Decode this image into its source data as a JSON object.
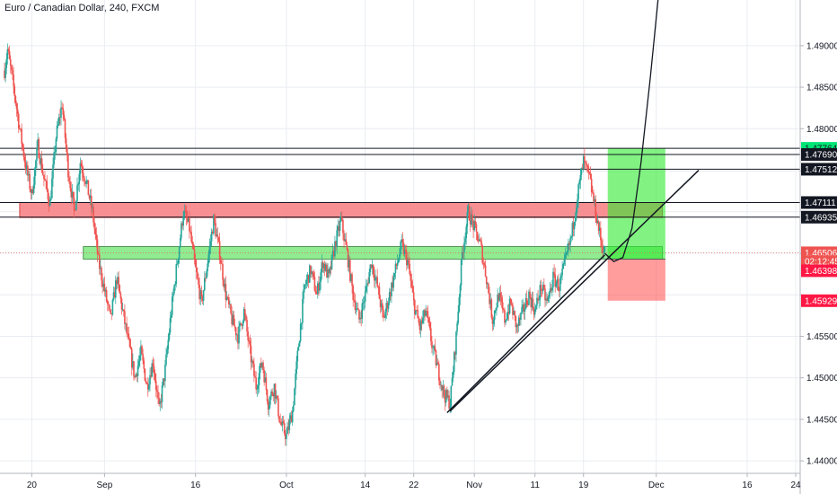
{
  "chart_data": {
    "type": "candlestick",
    "title": "Euro / Canadian Dollar, 240, FXCM",
    "ylim": [
      1.4385,
      1.4955
    ],
    "y_ticks": [
      1.49,
      1.485,
      1.48,
      1.4749,
      1.47,
      1.465,
      1.46,
      1.455,
      1.45,
      1.445,
      1.44
    ],
    "y_tick_labels": [
      "1.49000",
      "1.48500",
      "1.48000",
      "",
      "",
      "",
      "",
      "1.45500",
      "1.45000",
      "1.44500",
      "1.44000"
    ],
    "x_ticks": [
      {
        "label": "20",
        "t": 20
      },
      {
        "label": "Sep",
        "t": 32
      },
      {
        "label": "16",
        "t": 47
      },
      {
        "label": "Oct",
        "t": 62
      },
      {
        "label": "14",
        "t": 75
      },
      {
        "label": "22",
        "t": 83
      },
      {
        "label": "Nov",
        "t": 93
      },
      {
        "label": "11",
        "t": 103
      },
      {
        "label": "19",
        "t": 111
      },
      {
        "label": "Dec",
        "t": 123
      },
      {
        "label": "16",
        "t": 138
      },
      {
        "label": "24",
        "t": 146
      }
    ],
    "x_range": [
      15.5,
      146
    ],
    "price_path": [
      [
        15.5,
        1.487
      ],
      [
        16,
        1.4895
      ],
      [
        17,
        1.485
      ],
      [
        18,
        1.48
      ],
      [
        19,
        1.4755
      ],
      [
        20,
        1.472
      ],
      [
        21,
        1.478
      ],
      [
        22,
        1.474
      ],
      [
        23,
        1.471
      ],
      [
        24,
        1.479
      ],
      [
        25,
        1.483
      ],
      [
        26,
        1.475
      ],
      [
        27,
        1.47
      ],
      [
        28,
        1.476
      ],
      [
        29,
        1.4735
      ],
      [
        30,
        1.47
      ],
      [
        31,
        1.464
      ],
      [
        32,
        1.4605
      ],
      [
        33,
        1.457
      ],
      [
        34,
        1.462
      ],
      [
        35,
        1.458
      ],
      [
        36,
        1.454
      ],
      [
        37,
        1.45
      ],
      [
        38,
        1.453
      ],
      [
        39,
        1.449
      ],
      [
        40,
        1.452
      ],
      [
        41,
        1.446
      ],
      [
        42,
        1.451
      ],
      [
        43,
        1.458
      ],
      [
        44,
        1.464
      ],
      [
        45,
        1.47
      ],
      [
        46,
        1.468
      ],
      [
        47,
        1.463
      ],
      [
        48,
        1.459
      ],
      [
        49,
        1.464
      ],
      [
        50,
        1.469
      ],
      [
        51,
        1.465
      ],
      [
        52,
        1.46
      ],
      [
        53,
        1.457
      ],
      [
        54,
        1.455
      ],
      [
        55,
        1.458
      ],
      [
        56,
        1.453
      ],
      [
        57,
        1.449
      ],
      [
        58,
        1.452
      ],
      [
        59,
        1.447
      ],
      [
        60,
        1.449
      ],
      [
        61,
        1.4445
      ],
      [
        62,
        1.443
      ],
      [
        63,
        1.446
      ],
      [
        64,
        1.454
      ],
      [
        65,
        1.461
      ],
      [
        66,
        1.463
      ],
      [
        67,
        1.46
      ],
      [
        68,
        1.464
      ],
      [
        69,
        1.462
      ],
      [
        70,
        1.466
      ],
      [
        71,
        1.469
      ],
      [
        72,
        1.465
      ],
      [
        73,
        1.46
      ],
      [
        74,
        1.457
      ],
      [
        75,
        1.46
      ],
      [
        76,
        1.464
      ],
      [
        77,
        1.461
      ],
      [
        78,
        1.457
      ],
      [
        79,
        1.46
      ],
      [
        80,
        1.463
      ],
      [
        81,
        1.466
      ],
      [
        82,
        1.464
      ],
      [
        83,
        1.459
      ],
      [
        84,
        1.456
      ],
      [
        85,
        1.458
      ],
      [
        86,
        1.454
      ],
      [
        87,
        1.451
      ],
      [
        88,
        1.448
      ],
      [
        89,
        1.447
      ],
      [
        90,
        1.455
      ],
      [
        91,
        1.465
      ],
      [
        92,
        1.47
      ],
      [
        93,
        1.468
      ],
      [
        94,
        1.466
      ],
      [
        95,
        1.462
      ],
      [
        96,
        1.457
      ],
      [
        97,
        1.46
      ],
      [
        98,
        1.457
      ],
      [
        99,
        1.459
      ],
      [
        100,
        1.456
      ],
      [
        101,
        1.458
      ],
      [
        102,
        1.46
      ],
      [
        103,
        1.458
      ],
      [
        104,
        1.461
      ],
      [
        105,
        1.459
      ],
      [
        106,
        1.462
      ],
      [
        107,
        1.461
      ],
      [
        108,
        1.464
      ],
      [
        109,
        1.467
      ],
      [
        110,
        1.472
      ],
      [
        111,
        1.476
      ],
      [
        112,
        1.474
      ],
      [
        113,
        1.47
      ],
      [
        114,
        1.466
      ],
      [
        114.6,
        1.465
      ]
    ],
    "horizontal_lines": [
      1.47764,
      1.4769,
      1.47512,
      1.47111,
      1.46935
    ],
    "zones": [
      {
        "kind": "resistance",
        "t0": 18,
        "t1": 124,
        "y0": 1.4711,
        "y1": 1.4693
      },
      {
        "kind": "support",
        "t0": 28.5,
        "t1": 124,
        "y0": 1.4658,
        "y1": 1.4643
      }
    ],
    "position": {
      "t0": 115,
      "t1": 124.5,
      "entry": 1.4643,
      "target": 1.47764,
      "stop": 1.45929
    },
    "trendlines": [
      [
        [
          89,
          1.446
        ],
        [
          130,
          1.475
        ]
      ],
      [
        [
          88.5,
          1.4458
        ],
        [
          114.5,
          1.4648
        ]
      ]
    ],
    "projection_curve": [
      [
        114.5,
        1.465
      ],
      [
        116,
        1.464
      ],
      [
        117.5,
        1.4645
      ],
      [
        119,
        1.468
      ],
      [
        120.5,
        1.476
      ],
      [
        122,
        1.486
      ],
      [
        123.5,
        1.497
      ]
    ],
    "current_price": 1.46506,
    "labels": [
      {
        "text": "1.47764",
        "price": 1.47764,
        "bg": "#00e676",
        "fg": "#131722"
      },
      {
        "text": "1.47690",
        "price": 1.4769,
        "bg": "#131722",
        "fg": "#ffffff"
      },
      {
        "text": "1.47512",
        "price": 1.47512,
        "bg": "#131722",
        "fg": "#ffffff"
      },
      {
        "text": "1.47111",
        "price": 1.47111,
        "bg": "#131722",
        "fg": "#ffffff"
      },
      {
        "text": "1.46935",
        "price": 1.46935,
        "bg": "#131722",
        "fg": "#ffffff"
      },
      {
        "text": "1.46506",
        "price": 1.46506,
        "bg": "#ef5350",
        "fg": "#ffffff"
      },
      {
        "text": "02:12:45",
        "price": 1.464,
        "bg": "#ef5350",
        "fg": "#ffffff"
      },
      {
        "text": "1.46398",
        "price": 1.4629,
        "bg": "#ff1744",
        "fg": "#ffffff"
      },
      {
        "text": "1.45929",
        "price": 1.45929,
        "bg": "#ff1744",
        "fg": "#ffffff"
      }
    ],
    "colors": {
      "up": "#26a69a",
      "down": "#ef5350",
      "grid": "#e9ecf1",
      "hline": "#131722",
      "resistance": "#f77c80",
      "support": "#7ee87e",
      "target_zone": "#2eea2e",
      "stop_zone": "#ff5a5a"
    },
    "grid": true
  }
}
